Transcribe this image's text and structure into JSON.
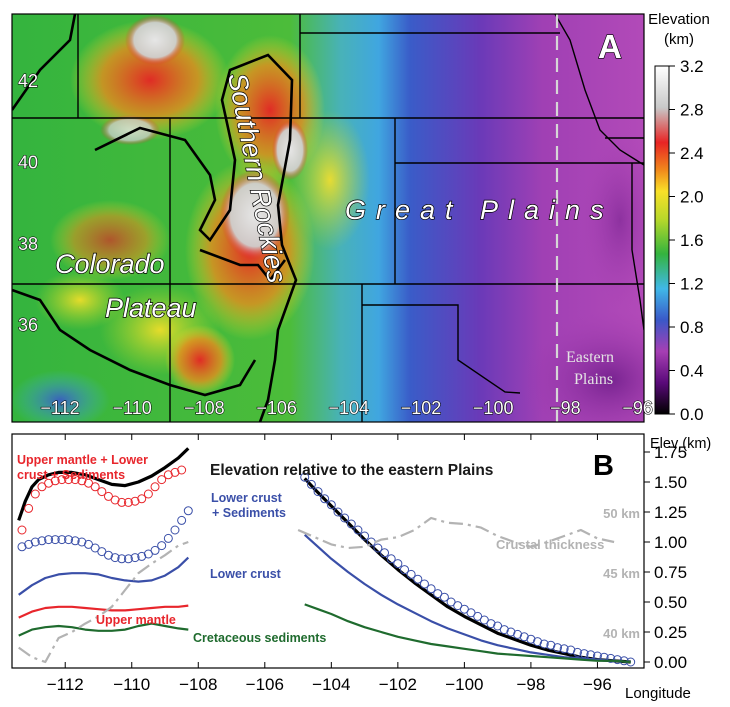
{
  "chart_data": [
    {
      "type": "heatmap",
      "panel_letter": "A",
      "colorbar": {
        "title_line1": "Elevation",
        "title_line2": "(km)",
        "ticks": [
          "3.2",
          "2.8",
          "2.4",
          "2.0",
          "1.6",
          "1.2",
          "0.8",
          "0.4",
          "0.0"
        ],
        "tick_values": [
          3.2,
          2.8,
          2.4,
          2.0,
          1.6,
          1.2,
          0.8,
          0.4,
          0.0
        ],
        "range": [
          0.0,
          3.2
        ],
        "colors": [
          "#000000",
          "#5a0a7a",
          "#a63fb4",
          "#3a58c8",
          "#40b8e8",
          "#34b43e",
          "#b8d82a",
          "#f8e028",
          "#f08a1c",
          "#e82424",
          "#c8c8c8",
          "#ffffff"
        ]
      },
      "lon_ticks": [
        "−112",
        "−110",
        "−108",
        "−106",
        "−104",
        "−102",
        "−100",
        "−98",
        "−96"
      ],
      "lon_values": [
        -112,
        -110,
        -108,
        -106,
        -104,
        -102,
        -100,
        -98,
        -96
      ],
      "lat_ticks": [
        "42",
        "40",
        "38",
        "36"
      ],
      "lat_values": [
        42,
        40,
        38,
        36
      ],
      "region_labels": {
        "southern_rockies": "Southern Rockies",
        "great_plains": "Great Plains",
        "colorado": "Colorado",
        "plateau": "Plateau",
        "eastern_line1": "Eastern",
        "eastern_line2": "Plains"
      },
      "eastern_plains_boundary_lon": -97
    },
    {
      "type": "line",
      "panel_letter": "B",
      "title": "Elevation relative to the eastern Plains",
      "ylabel": "Elev (km)",
      "xlabel": "Longitude",
      "xlim": [
        -113.6,
        -94.6
      ],
      "ylim": [
        -0.05,
        1.9
      ],
      "xticks": [
        "−112",
        "−110",
        "−108",
        "−106",
        "−104",
        "−102",
        "−100",
        "−98",
        "−96"
      ],
      "xtick_values": [
        -112,
        -110,
        -108,
        -106,
        -104,
        -102,
        -100,
        -98,
        -96
      ],
      "yticks": [
        "1.75",
        "1.50",
        "1.25",
        "1.00",
        "0.75",
        "0.50",
        "0.25",
        "0.00"
      ],
      "ytick_values": [
        1.75,
        1.5,
        1.25,
        1.0,
        0.75,
        0.5,
        0.25,
        0.0
      ],
      "crustal_axis_ticks": [
        "50 km",
        "45 km",
        "40 km"
      ],
      "crustal_axis_values": [
        1.25,
        0.75,
        0.25
      ],
      "colors": {
        "elevation": "#000000",
        "upper_mantle": "#e8262c",
        "lower_crust": "#3a4fa8",
        "sediments": "#1f6b2e",
        "crustal": "#b3b3b3"
      },
      "labels": {
        "um_line1": "Upper mantle + Lower",
        "um_line2": "crust + Sediments",
        "lc_sed_line1": "Lower crust",
        "lc_sed_line2": "+ Sediments",
        "lower_crust": "Lower crust",
        "upper_mantle": "Upper mantle",
        "sediments": "Cretaceous sediments",
        "crustal": "Crustal thickness"
      },
      "series": [
        {
          "key": "elevation",
          "style": "line",
          "segments": [
            {
              "x": [
                -113.4,
                -113.2,
                -113.0,
                -112.8,
                -112.5,
                -112.2,
                -111.8,
                -111.4,
                -111.0,
                -110.6,
                -110.2,
                -109.8,
                -109.4,
                -109.0,
                -108.6,
                -108.3
              ],
              "y": [
                1.18,
                1.34,
                1.46,
                1.52,
                1.56,
                1.58,
                1.58,
                1.56,
                1.52,
                1.48,
                1.47,
                1.5,
                1.55,
                1.62,
                1.7,
                1.78
              ]
            },
            {
              "x": [
                -104.8,
                -104.5,
                -104.0,
                -103.5,
                -103.0,
                -102.5,
                -102.0,
                -101.5,
                -101.0,
                -100.5,
                -100.0,
                -99.5,
                -99.0,
                -98.5,
                -98.0,
                -97.5,
                -97.0,
                -96.5,
                -96.0,
                -95.5,
                -95.0
              ],
              "y": [
                1.53,
                1.44,
                1.3,
                1.16,
                1.02,
                0.89,
                0.77,
                0.66,
                0.56,
                0.46,
                0.38,
                0.31,
                0.24,
                0.19,
                0.14,
                0.1,
                0.07,
                0.04,
                0.02,
                0.01,
                0.0
              ]
            }
          ]
        },
        {
          "key": "upper_mantle",
          "style": "circles",
          "segments": [
            {
              "x": [
                -113.3,
                -113.1,
                -112.9,
                -112.7,
                -112.5,
                -112.3,
                -112.1,
                -111.9,
                -111.7,
                -111.5,
                -111.3,
                -111.1,
                -110.9,
                -110.7,
                -110.5,
                -110.3,
                -110.1,
                -109.9,
                -109.7,
                -109.5,
                -109.3,
                -109.1,
                -108.9,
                -108.7,
                -108.5
              ],
              "y": [
                1.1,
                1.28,
                1.4,
                1.46,
                1.49,
                1.51,
                1.52,
                1.52,
                1.52,
                1.51,
                1.49,
                1.46,
                1.42,
                1.38,
                1.35,
                1.33,
                1.33,
                1.34,
                1.36,
                1.4,
                1.46,
                1.52,
                1.56,
                1.58,
                1.6
              ]
            }
          ]
        },
        {
          "key": "lower_crust",
          "style": "circles",
          "segments": [
            {
              "x": [
                -113.3,
                -113.1,
                -112.9,
                -112.7,
                -112.5,
                -112.3,
                -112.1,
                -111.9,
                -111.7,
                -111.5,
                -111.3,
                -111.1,
                -110.9,
                -110.7,
                -110.5,
                -110.3,
                -110.1,
                -109.9,
                -109.7,
                -109.5,
                -109.3,
                -109.1,
                -108.9,
                -108.7,
                -108.5,
                -108.3
              ],
              "y": [
                0.96,
                0.98,
                1.0,
                1.01,
                1.02,
                1.02,
                1.02,
                1.02,
                1.01,
                1.0,
                0.98,
                0.95,
                0.92,
                0.89,
                0.87,
                0.86,
                0.86,
                0.87,
                0.88,
                0.9,
                0.93,
                0.97,
                1.03,
                1.1,
                1.18,
                1.26
              ]
            },
            {
              "x": [
                -104.8,
                -104.6,
                -104.4,
                -104.2,
                -104.0,
                -103.8,
                -103.6,
                -103.4,
                -103.2,
                -103.0,
                -102.8,
                -102.6,
                -102.4,
                -102.2,
                -102.0,
                -101.8,
                -101.6,
                -101.4,
                -101.2,
                -101.0,
                -100.8,
                -100.6,
                -100.4,
                -100.2,
                -100.0,
                -99.8,
                -99.6,
                -99.4,
                -99.2,
                -99.0,
                -98.8,
                -98.6,
                -98.4,
                -98.2,
                -98.0,
                -97.8,
                -97.6,
                -97.4,
                -97.2,
                -97.0,
                -96.8,
                -96.6,
                -96.4,
                -96.2,
                -96.0,
                -95.8,
                -95.6,
                -95.4,
                -95.2,
                -95.0
              ],
              "y": [
                1.54,
                1.48,
                1.42,
                1.36,
                1.31,
                1.25,
                1.2,
                1.15,
                1.1,
                1.05,
                1.0,
                0.95,
                0.91,
                0.86,
                0.82,
                0.77,
                0.73,
                0.69,
                0.65,
                0.61,
                0.57,
                0.54,
                0.5,
                0.47,
                0.44,
                0.41,
                0.38,
                0.35,
                0.32,
                0.3,
                0.27,
                0.25,
                0.23,
                0.21,
                0.19,
                0.17,
                0.15,
                0.14,
                0.12,
                0.11,
                0.1,
                0.08,
                0.07,
                0.06,
                0.05,
                0.04,
                0.03,
                0.02,
                0.01,
                0.0
              ]
            }
          ]
        },
        {
          "key": "lower_crust",
          "style": "line",
          "segments": [
            {
              "x": [
                -113.4,
                -113.0,
                -112.6,
                -112.2,
                -111.8,
                -111.4,
                -111.0,
                -110.6,
                -110.2,
                -109.8,
                -109.4,
                -109.0,
                -108.6,
                -108.3
              ],
              "y": [
                0.56,
                0.64,
                0.7,
                0.73,
                0.74,
                0.74,
                0.73,
                0.7,
                0.68,
                0.67,
                0.68,
                0.72,
                0.79,
                0.87
              ]
            },
            {
              "x": [
                -104.8,
                -104.4,
                -104.0,
                -103.5,
                -103.0,
                -102.5,
                -102.0,
                -101.5,
                -101.0,
                -100.5,
                -100.0,
                -99.5,
                -99.0,
                -98.5,
                -98.0,
                -97.5,
                -97.0,
                -96.5,
                -96.0,
                -95.5,
                -95.0
              ],
              "y": [
                1.06,
                0.96,
                0.86,
                0.75,
                0.65,
                0.56,
                0.48,
                0.41,
                0.34,
                0.28,
                0.23,
                0.18,
                0.14,
                0.11,
                0.08,
                0.06,
                0.04,
                0.03,
                0.02,
                0.01,
                0.0
              ]
            }
          ]
        },
        {
          "key": "upper_mantle",
          "style": "line",
          "segments": [
            {
              "x": [
                -113.4,
                -113.0,
                -112.6,
                -112.2,
                -111.8,
                -111.4,
                -111.0,
                -110.6,
                -110.2,
                -109.8,
                -109.4,
                -109.0,
                -108.6,
                -108.3
              ],
              "y": [
                0.37,
                0.42,
                0.45,
                0.46,
                0.46,
                0.45,
                0.44,
                0.43,
                0.43,
                0.44,
                0.45,
                0.46,
                0.46,
                0.47
              ]
            }
          ]
        },
        {
          "key": "sediments",
          "style": "line",
          "segments": [
            {
              "x": [
                -113.4,
                -113.0,
                -112.6,
                -112.2,
                -111.8,
                -111.4,
                -111.0,
                -110.6,
                -110.2,
                -109.8,
                -109.4,
                -109.0,
                -108.6,
                -108.3
              ],
              "y": [
                0.22,
                0.27,
                0.29,
                0.3,
                0.29,
                0.27,
                0.26,
                0.26,
                0.27,
                0.3,
                0.32,
                0.3,
                0.28,
                0.27
              ]
            },
            {
              "x": [
                -104.8,
                -104.4,
                -104.0,
                -103.5,
                -103.0,
                -102.5,
                -102.0,
                -101.5,
                -101.0,
                -100.5,
                -100.0,
                -99.5,
                -99.0,
                -98.5,
                -98.0,
                -97.5,
                -97.0,
                -96.5,
                -96.0,
                -95.5,
                -95.0
              ],
              "y": [
                0.48,
                0.44,
                0.4,
                0.34,
                0.29,
                0.25,
                0.21,
                0.18,
                0.15,
                0.13,
                0.11,
                0.09,
                0.07,
                0.06,
                0.05,
                0.04,
                0.03,
                0.02,
                0.01,
                0.01,
                0.0
              ]
            }
          ]
        },
        {
          "key": "crustal",
          "style": "dashdot",
          "segments": [
            {
              "x": [
                -113.4,
                -113.0,
                -112.6,
                -112.2,
                -111.8,
                -111.4,
                -111.0,
                -110.6,
                -110.2,
                -109.8,
                -109.4,
                -109.0,
                -108.6,
                -108.3
              ],
              "y": [
                0.12,
                0.04,
                0.0,
                0.2,
                0.25,
                0.32,
                0.38,
                0.46,
                0.6,
                0.74,
                0.82,
                0.89,
                0.97,
                1.0
              ]
            },
            {
              "x": [
                -105.0,
                -104.5,
                -104.0,
                -103.5,
                -103.0,
                -102.5,
                -102.0,
                -101.5,
                -101.0,
                -100.5,
                -100.0,
                -99.5,
                -99.0,
                -98.5,
                -98.0,
                -97.5,
                -97.0,
                -96.5,
                -96.0,
                -95.5
              ],
              "y": [
                1.1,
                1.04,
                0.98,
                0.95,
                0.96,
                1.02,
                1.04,
                1.1,
                1.2,
                1.16,
                1.15,
                1.12,
                1.05,
                1.0,
                0.96,
                1.0,
                1.05,
                1.1,
                1.03,
                1.0
              ]
            }
          ]
        }
      ]
    }
  ]
}
